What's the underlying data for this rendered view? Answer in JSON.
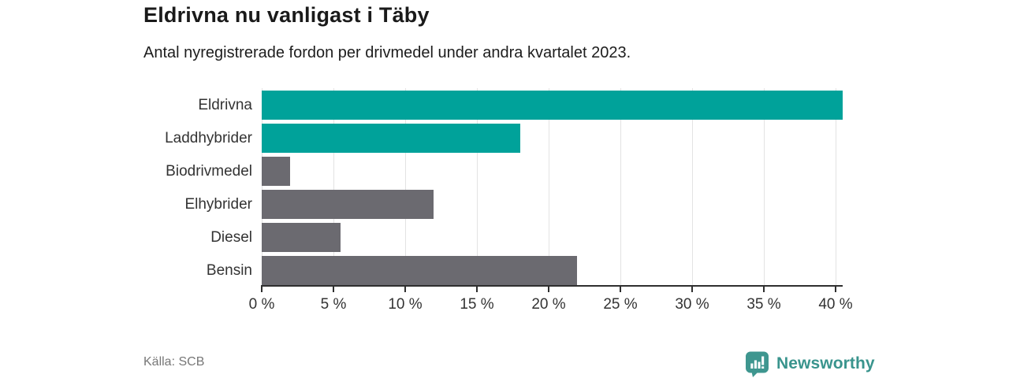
{
  "header": {
    "title": "Eldrivna nu vanligast i Täby",
    "subtitle": "Antal nyregistrerade fordon per drivmedel under andra kvartalet 2023."
  },
  "chart_data": {
    "type": "bar",
    "orientation": "horizontal",
    "title": "Eldrivna nu vanligast i Täby",
    "categories": [
      "Eldrivna",
      "Laddhybrider",
      "Biodrivmedel",
      "Elhybrider",
      "Diesel",
      "Bensin"
    ],
    "values": [
      40.5,
      18,
      2,
      12,
      5.5,
      22
    ],
    "unit": "%",
    "xlabel": "",
    "ylabel": "",
    "xlim": [
      0,
      40
    ],
    "xticks": [
      0,
      5,
      10,
      15,
      20,
      25,
      30,
      35,
      40
    ],
    "xtick_suffix": " %",
    "grid": true,
    "bar_colors": [
      "#00a29a",
      "#00a29a",
      "#6b6a70",
      "#6b6a70",
      "#6b6a70",
      "#6b6a70"
    ]
  },
  "colors": {
    "accent_teal": "#00a29a",
    "bar_gray": "#6b6a70",
    "logo_teal": "#3e968f"
  },
  "footer": {
    "source": "Källa: SCB",
    "brand": "Newsworthy"
  }
}
